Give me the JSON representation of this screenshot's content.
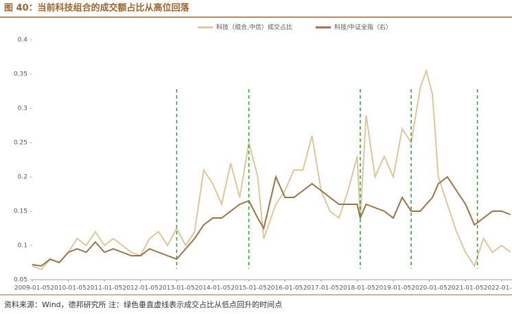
{
  "chart_data": {
    "type": "line",
    "title": "图 40：当前科技组合的成交额占比从高位回落",
    "source": "资料来源：Wind，德邦研究所 注：绿色垂直虚线表示成交占比从低点回升的时间点",
    "x": [
      "2009-01-05",
      "2009-04-05",
      "2009-07-05",
      "2009-10-05",
      "2010-01-05",
      "2010-04-05",
      "2010-07-05",
      "2010-10-05",
      "2011-01-05",
      "2011-04-05",
      "2011-07-05",
      "2011-10-05",
      "2012-01-05",
      "2012-04-05",
      "2012-07-05",
      "2012-10-05",
      "2013-01-05",
      "2013-04-05",
      "2013-07-05",
      "2013-10-05",
      "2014-01-05",
      "2014-04-05",
      "2014-07-05",
      "2014-10-05",
      "2015-01-05",
      "2015-04-05",
      "2015-06-05",
      "2015-10-05",
      "2016-01-05",
      "2016-04-05",
      "2016-07-05",
      "2016-10-05",
      "2017-01-05",
      "2017-04-05",
      "2017-07-05",
      "2017-10-05",
      "2018-01-05",
      "2018-02-05",
      "2018-04-05",
      "2018-07-05",
      "2018-10-05",
      "2019-01-05",
      "2019-04-05",
      "2019-07-05",
      "2019-10-05",
      "2019-12-05",
      "2020-02-05",
      "2020-04-05",
      "2020-07-05",
      "2020-10-05",
      "2021-01-05",
      "2021-04-05",
      "2021-07-05",
      "2021-10-05",
      "2022-01-05",
      "2022-04-05"
    ],
    "series": [
      {
        "name": "科技（组合,中信）成交占比",
        "color": "#dcc79c",
        "values": [
          0.07,
          0.065,
          0.08,
          0.075,
          0.09,
          0.11,
          0.1,
          0.12,
          0.1,
          0.11,
          0.1,
          0.09,
          0.085,
          0.11,
          0.12,
          0.1,
          0.125,
          0.1,
          0.12,
          0.21,
          0.19,
          0.16,
          0.22,
          0.17,
          0.25,
          0.2,
          0.11,
          0.16,
          0.18,
          0.21,
          0.21,
          0.26,
          0.18,
          0.15,
          0.14,
          0.18,
          0.23,
          0.14,
          0.29,
          0.2,
          0.23,
          0.2,
          0.27,
          0.25,
          0.33,
          0.355,
          0.32,
          0.2,
          0.16,
          0.12,
          0.09,
          0.07,
          0.11,
          0.09,
          0.1,
          0.09
        ]
      },
      {
        "name": "科技/中证全指（右）",
        "color": "#9c7148",
        "values": [
          0.072,
          0.07,
          0.08,
          0.075,
          0.09,
          0.095,
          0.09,
          0.105,
          0.09,
          0.095,
          0.09,
          0.085,
          0.085,
          0.095,
          0.09,
          0.085,
          0.08,
          0.095,
          0.11,
          0.13,
          0.14,
          0.14,
          0.15,
          0.16,
          0.165,
          0.14,
          0.125,
          0.2,
          0.17,
          0.17,
          0.18,
          0.19,
          0.18,
          0.17,
          0.16,
          0.16,
          0.16,
          0.14,
          0.16,
          0.155,
          0.15,
          0.14,
          0.17,
          0.15,
          0.15,
          0.16,
          0.17,
          0.19,
          0.2,
          0.18,
          0.16,
          0.13,
          0.14,
          0.15,
          0.15,
          0.145
        ]
      }
    ],
    "xlim": [
      "2009-01-05",
      "2022-04-20"
    ],
    "xticks": [
      "2009-01-05",
      "2010-01-05",
      "2011-01-05",
      "2012-01-05",
      "2013-01-05",
      "2014-01-05",
      "2015-01-05",
      "2016-01-05",
      "2017-01-05",
      "2018-01-05",
      "2019-01-05",
      "2020-01-05",
      "2021-01-05",
      "2022-01-05"
    ],
    "ylim": [
      0.05,
      0.4
    ],
    "yticks": [
      0.05,
      0.1,
      0.15,
      0.2,
      0.25,
      0.3,
      0.35,
      0.4
    ],
    "vlines": [
      "2013-01-05",
      "2015-01-05",
      "2018-02-05",
      "2019-07-05",
      "2021-05-05"
    ],
    "vline_color": "#2ca02c"
  }
}
